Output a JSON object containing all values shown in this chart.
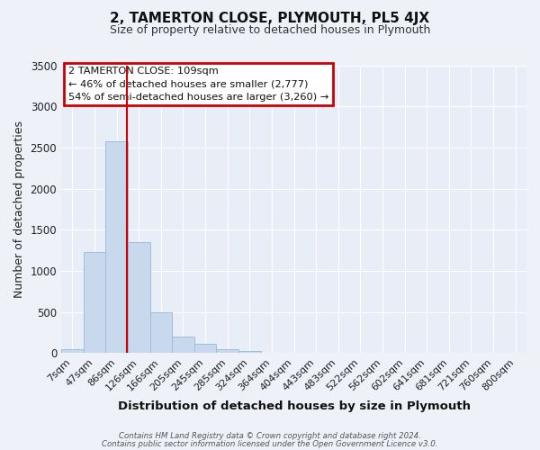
{
  "title": "2, TAMERTON CLOSE, PLYMOUTH, PL5 4JX",
  "subtitle": "Size of property relative to detached houses in Plymouth",
  "xlabel": "Distribution of detached houses by size in Plymouth",
  "ylabel": "Number of detached properties",
  "bar_labels": [
    "7sqm",
    "47sqm",
    "86sqm",
    "126sqm",
    "166sqm",
    "205sqm",
    "245sqm",
    "285sqm",
    "324sqm",
    "364sqm",
    "404sqm",
    "443sqm",
    "483sqm",
    "522sqm",
    "562sqm",
    "602sqm",
    "641sqm",
    "681sqm",
    "721sqm",
    "760sqm",
    "800sqm"
  ],
  "bar_values": [
    50,
    1230,
    2580,
    1350,
    500,
    205,
    110,
    45,
    30,
    10,
    5,
    3,
    2,
    0,
    0,
    0,
    0,
    0,
    0,
    0,
    0
  ],
  "bar_color": "#c8d9ee",
  "bar_edge_color": "#a0bed8",
  "background_color": "#e8eef8",
  "fig_background_color": "#eef2f8",
  "grid_color": "#ffffff",
  "vline_color": "#cc0000",
  "vline_x_index": 2.45,
  "ylim": [
    0,
    3500
  ],
  "yticks": [
    0,
    500,
    1000,
    1500,
    2000,
    2500,
    3000,
    3500
  ],
  "annotation_title": "2 TAMERTON CLOSE: 109sqm",
  "annotation_line1": "← 46% of detached houses are smaller (2,777)",
  "annotation_line2": "54% of semi-detached houses are larger (3,260) →",
  "annotation_box_edgecolor": "#cc0000",
  "title_fontsize": 11,
  "subtitle_fontsize": 9,
  "xlabel_fontsize": 9.5,
  "ylabel_fontsize": 9,
  "tick_fontsize": 8,
  "footer_line1": "Contains HM Land Registry data © Crown copyright and database right 2024.",
  "footer_line2": "Contains public sector information licensed under the Open Government Licence v3.0."
}
